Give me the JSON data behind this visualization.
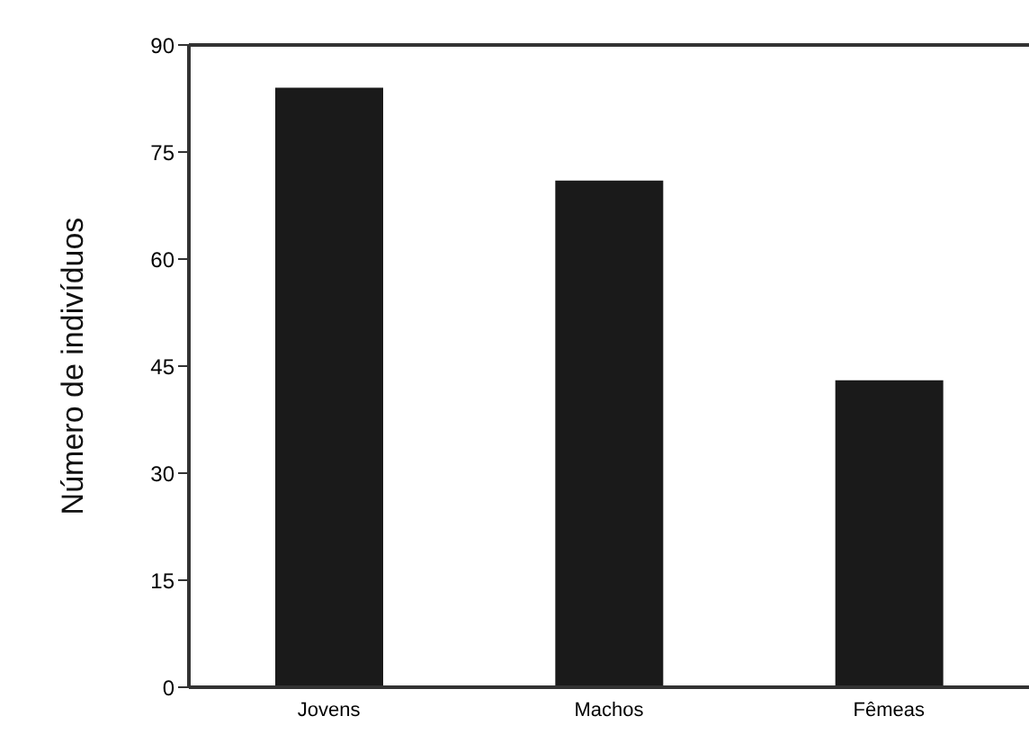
{
  "chart_data": {
    "type": "bar",
    "ylabel": "Número de indivíduos",
    "categories": [
      "Jovens",
      "Machos",
      "Fêmeas"
    ],
    "values": [
      84,
      71,
      43
    ],
    "color": "#1a1a1a",
    "ylim": [
      0,
      90
    ],
    "yticks": [
      0,
      15,
      30,
      45,
      60,
      75,
      90
    ],
    "grid": false
  }
}
